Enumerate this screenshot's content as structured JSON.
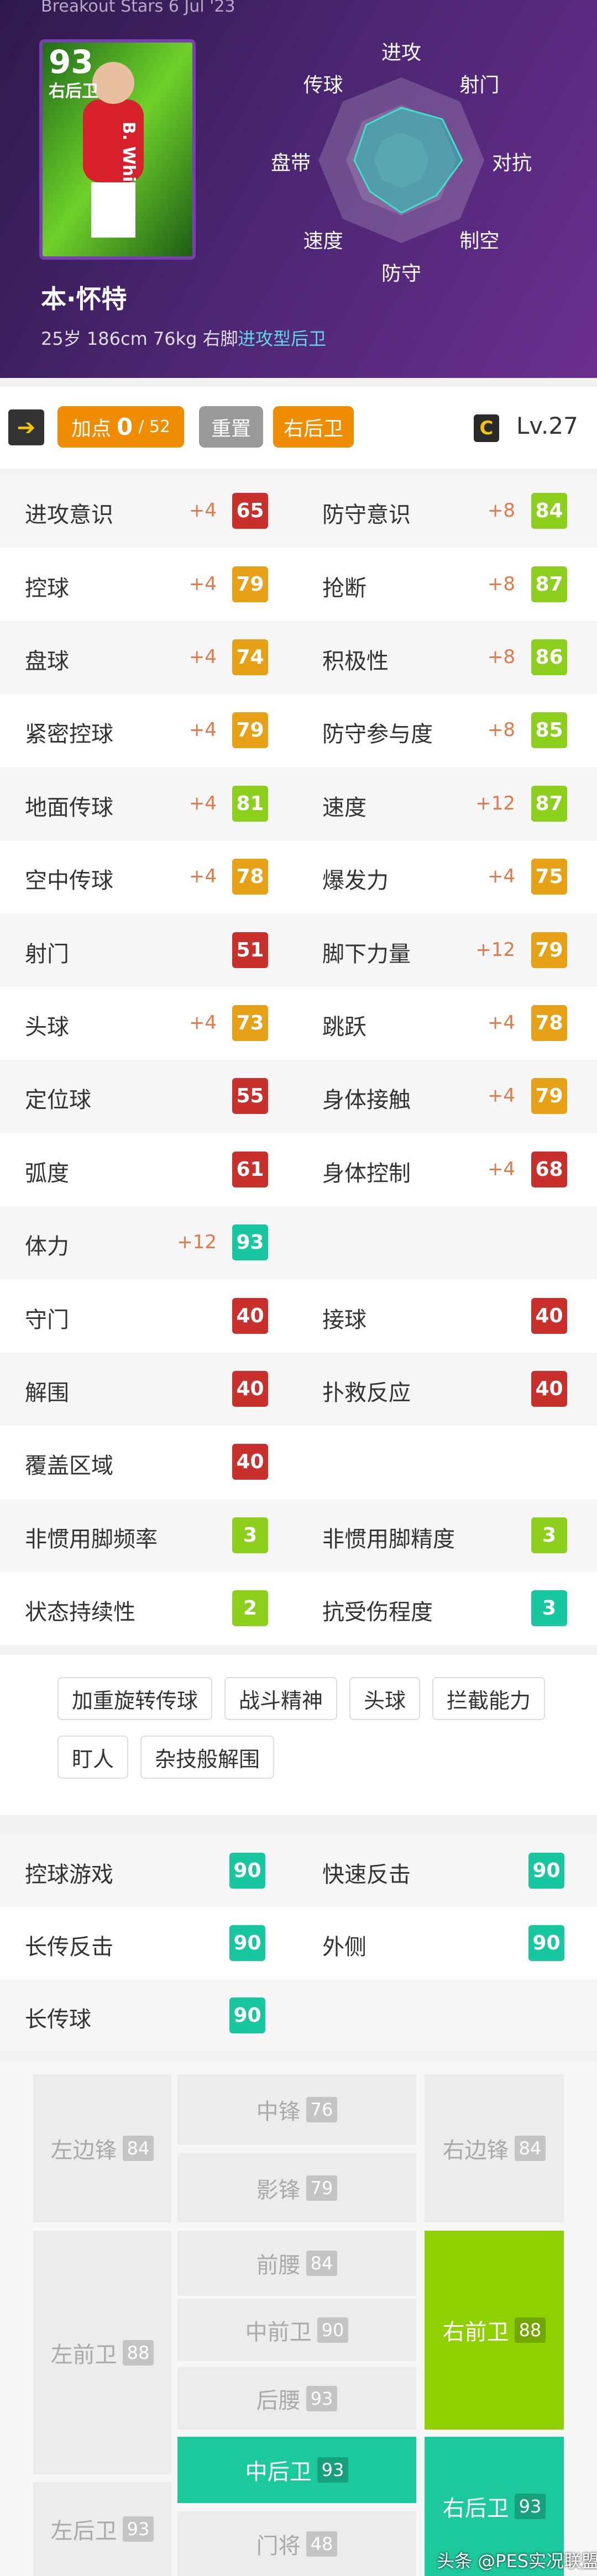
{
  "header": {
    "event": "Breakout Stars 6 Jul '23",
    "card": {
      "rating": "93",
      "position": "右后卫",
      "name": "B. White"
    },
    "name": "本·怀特",
    "info": "25岁 186cm 76kg 右脚",
    "style": "进攻型后卫",
    "radar_labels": [
      "进攻",
      "射门",
      "对抗",
      "制空",
      "防守",
      "速度",
      "盘带",
      "传球"
    ]
  },
  "toolbar": {
    "points_label": "加点",
    "points": "0",
    "points_max": "/ 52",
    "reset": "重置",
    "position": "右后卫",
    "rank": "C",
    "level": "Lv.27"
  },
  "stats": [
    {
      "left": {
        "name": "进攻意识",
        "bonus": "+4",
        "value": 65,
        "color": "#c9302c"
      },
      "right": {
        "name": "防守意识",
        "bonus": "+8",
        "value": 84,
        "color": "#8ccf1c"
      }
    },
    {
      "left": {
        "name": "控球",
        "bonus": "+4",
        "value": 79,
        "color": "#e6a117"
      },
      "right": {
        "name": "抢断",
        "bonus": "+8",
        "value": 87,
        "color": "#8ccf1c"
      }
    },
    {
      "left": {
        "name": "盘球",
        "bonus": "+4",
        "value": 74,
        "color": "#e6a117"
      },
      "right": {
        "name": "积极性",
        "bonus": "+8",
        "value": 86,
        "color": "#8ccf1c"
      }
    },
    {
      "left": {
        "name": "紧密控球",
        "bonus": "+4",
        "value": 79,
        "color": "#e6a117"
      },
      "right": {
        "name": "防守参与度",
        "bonus": "+8",
        "value": 85,
        "color": "#8ccf1c"
      }
    },
    {
      "left": {
        "name": "地面传球",
        "bonus": "+4",
        "value": 81,
        "color": "#8ccf1c"
      },
      "right": {
        "name": "速度",
        "bonus": "+12",
        "value": 87,
        "color": "#8ccf1c"
      }
    },
    {
      "left": {
        "name": "空中传球",
        "bonus": "+4",
        "value": 78,
        "color": "#e6a117"
      },
      "right": {
        "name": "爆发力",
        "bonus": "+4",
        "value": 75,
        "color": "#e6a117"
      }
    },
    {
      "left": {
        "name": "射门",
        "value": 51,
        "color": "#c9302c"
      },
      "right": {
        "name": "脚下力量",
        "bonus": "+12",
        "value": 79,
        "color": "#e6a117"
      }
    },
    {
      "left": {
        "name": "头球",
        "bonus": "+4",
        "value": 73,
        "color": "#e6a117"
      },
      "right": {
        "name": "跳跃",
        "bonus": "+4",
        "value": 78,
        "color": "#e6a117"
      }
    },
    {
      "left": {
        "name": "定位球",
        "value": 55,
        "color": "#c9302c"
      },
      "right": {
        "name": "身体接触",
        "bonus": "+4",
        "value": 79,
        "color": "#e6a117"
      }
    },
    {
      "left": {
        "name": "弧度",
        "value": 61,
        "color": "#c9302c"
      },
      "right": {
        "name": "身体控制",
        "bonus": "+4",
        "value": 68,
        "color": "#c9302c"
      }
    },
    {
      "left": {
        "name": "体力",
        "bonus": "+12",
        "value": 93,
        "color": "#17c79f"
      }
    },
    {
      "left": {
        "name": "守门",
        "value": 40,
        "color": "#c9302c"
      },
      "right": {
        "name": "接球",
        "value": 40,
        "color": "#c9302c"
      }
    },
    {
      "left": {
        "name": "解围",
        "value": 40,
        "color": "#c9302c"
      },
      "right": {
        "name": "扑救反应",
        "value": 40,
        "color": "#c9302c"
      }
    },
    {
      "left": {
        "name": "覆盖区域",
        "value": 40,
        "color": "#c9302c"
      }
    },
    {
      "left": {
        "name": "非惯用脚频率",
        "value": 3,
        "color": "#8ccf1c"
      },
      "right": {
        "name": "非惯用脚精度",
        "value": 3,
        "color": "#8ccf1c"
      }
    },
    {
      "left": {
        "name": "状态持续性",
        "value": 2,
        "color": "#8ccf1c"
      },
      "right": {
        "name": "抗受伤程度",
        "value": 3,
        "color": "#17c79f"
      }
    }
  ],
  "skills": [
    "加重旋转传球",
    "战斗精神",
    "头球",
    "拦截能力",
    "盯人",
    "杂技般解围"
  ],
  "playstyles": [
    {
      "left": {
        "name": "控球游戏",
        "value": 90
      },
      "right": {
        "name": "快速反击",
        "value": 90
      }
    },
    {
      "left": {
        "name": "长传反击",
        "value": 90
      },
      "right": {
        "name": "外侧",
        "value": 90
      }
    },
    {
      "left": {
        "name": "长传球",
        "value": 90
      }
    }
  ],
  "playstyle_color": "#17c79f",
  "positions": [
    {
      "name": "左边锋",
      "rating": 84
    },
    {
      "name": "中锋",
      "rating": 76
    },
    {
      "name": "影锋",
      "rating": 79
    },
    {
      "name": "右边锋",
      "rating": 84
    },
    {
      "name": "左前卫",
      "rating": 88
    },
    {
      "name": "前腰",
      "rating": 84
    },
    {
      "name": "中前卫",
      "rating": 90
    },
    {
      "name": "后腰",
      "rating": 93
    },
    {
      "name": "右前卫",
      "rating": 88,
      "color": "#8fd100"
    },
    {
      "name": "左后卫",
      "rating": 93
    },
    {
      "name": "中后卫",
      "rating": 93,
      "color": "#1cc99c"
    },
    {
      "name": "门将",
      "rating": 48
    },
    {
      "name": "右后卫",
      "rating": 93,
      "color": "#1cc99c"
    }
  ],
  "watermark": "头条 @PES实况联盟"
}
